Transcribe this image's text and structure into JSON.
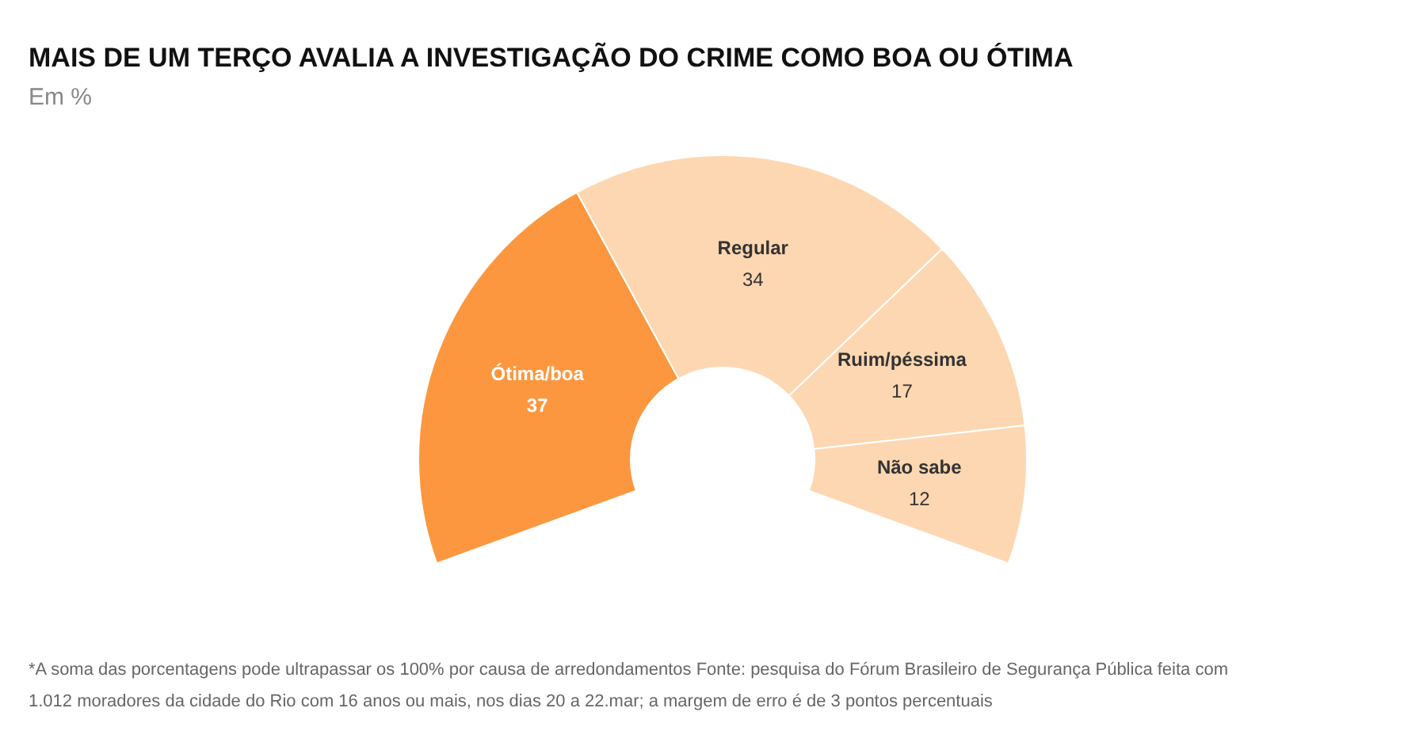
{
  "chart_data": {
    "type": "donut",
    "title": "MAIS DE UM TERÇO AVALIA A INVESTIGAÇÃO DO CRIME COMO BOA OU ÓTIMA",
    "subtitle": "Em %",
    "categories": [
      "Ótima/boa",
      "Regular",
      "Ruim/péssima",
      "Não sabe"
    ],
    "values": [
      37,
      34,
      17,
      12
    ],
    "colors": [
      "#fc973f",
      "#fdd7b1",
      "#fdd7b1",
      "#fdd7b1"
    ],
    "data_labels": true,
    "annotations": [
      "*A soma das porcentagens pode ultrapassar os 100% por causa de arredondamentos Fonte: pesquisa do Fórum Brasileiro de Segurança Pública feita com 1.012 moradores da cidade do Rio com 16 anos ou mais, nos dias 20 a 22.mar; a margem de erro é de 3 pontos percentuais"
    ]
  }
}
